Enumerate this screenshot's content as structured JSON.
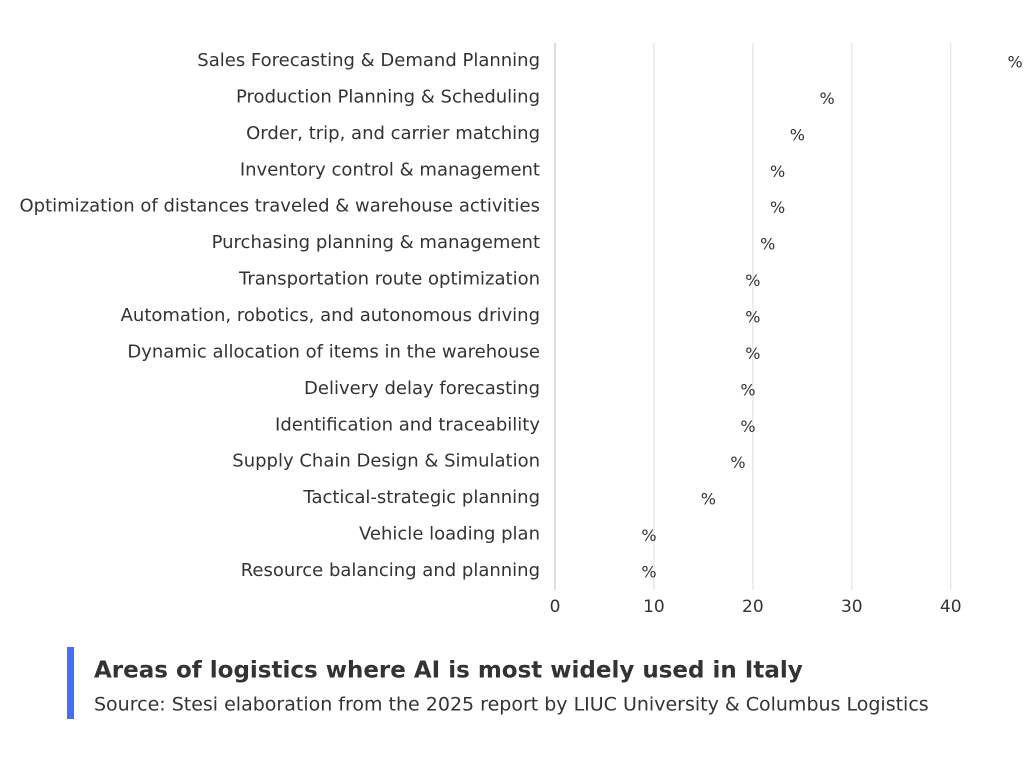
{
  "chart_data": {
    "type": "bar",
    "orientation": "horizontal",
    "title": "Areas of logistics where AI is most widely used in Italy",
    "subtitle": "Source: Stesi elaboration from the 2025 report by LIUC University & Columbus Logistics",
    "categories": [
      "Sales Forecasting & Demand Planning",
      "Production Planning & Scheduling",
      "Order, trip, and carrier matching",
      "Inventory control & management",
      "Optimization of distances traveled & warehouse activities",
      "Purchasing planning & management",
      "Transportation route optimization",
      "Automation, robotics, and autonomous driving",
      "Dynamic allocation of items in the warehouse",
      "Delivery delay forecasting",
      "Identification and traceability",
      "Supply Chain Design & Simulation",
      "Tactical-strategic planning",
      "Vehicle loading plan",
      "Resource balancing and planning"
    ],
    "values": [
      46.5,
      27.5,
      24.5,
      22.5,
      22.5,
      21.5,
      20,
      20,
      20,
      19.5,
      19.5,
      18.5,
      15.5,
      9.5,
      9.5
    ],
    "value_labels": [
      "%",
      "%",
      "%",
      "%",
      "%",
      "%",
      "%",
      "%",
      "%",
      "%",
      "%",
      "%",
      "%",
      "%",
      "%"
    ],
    "xlim": [
      0,
      47
    ],
    "xticks": [
      0,
      10,
      20,
      30,
      40
    ],
    "grid": true,
    "accent_color": "#4a6cf7"
  }
}
